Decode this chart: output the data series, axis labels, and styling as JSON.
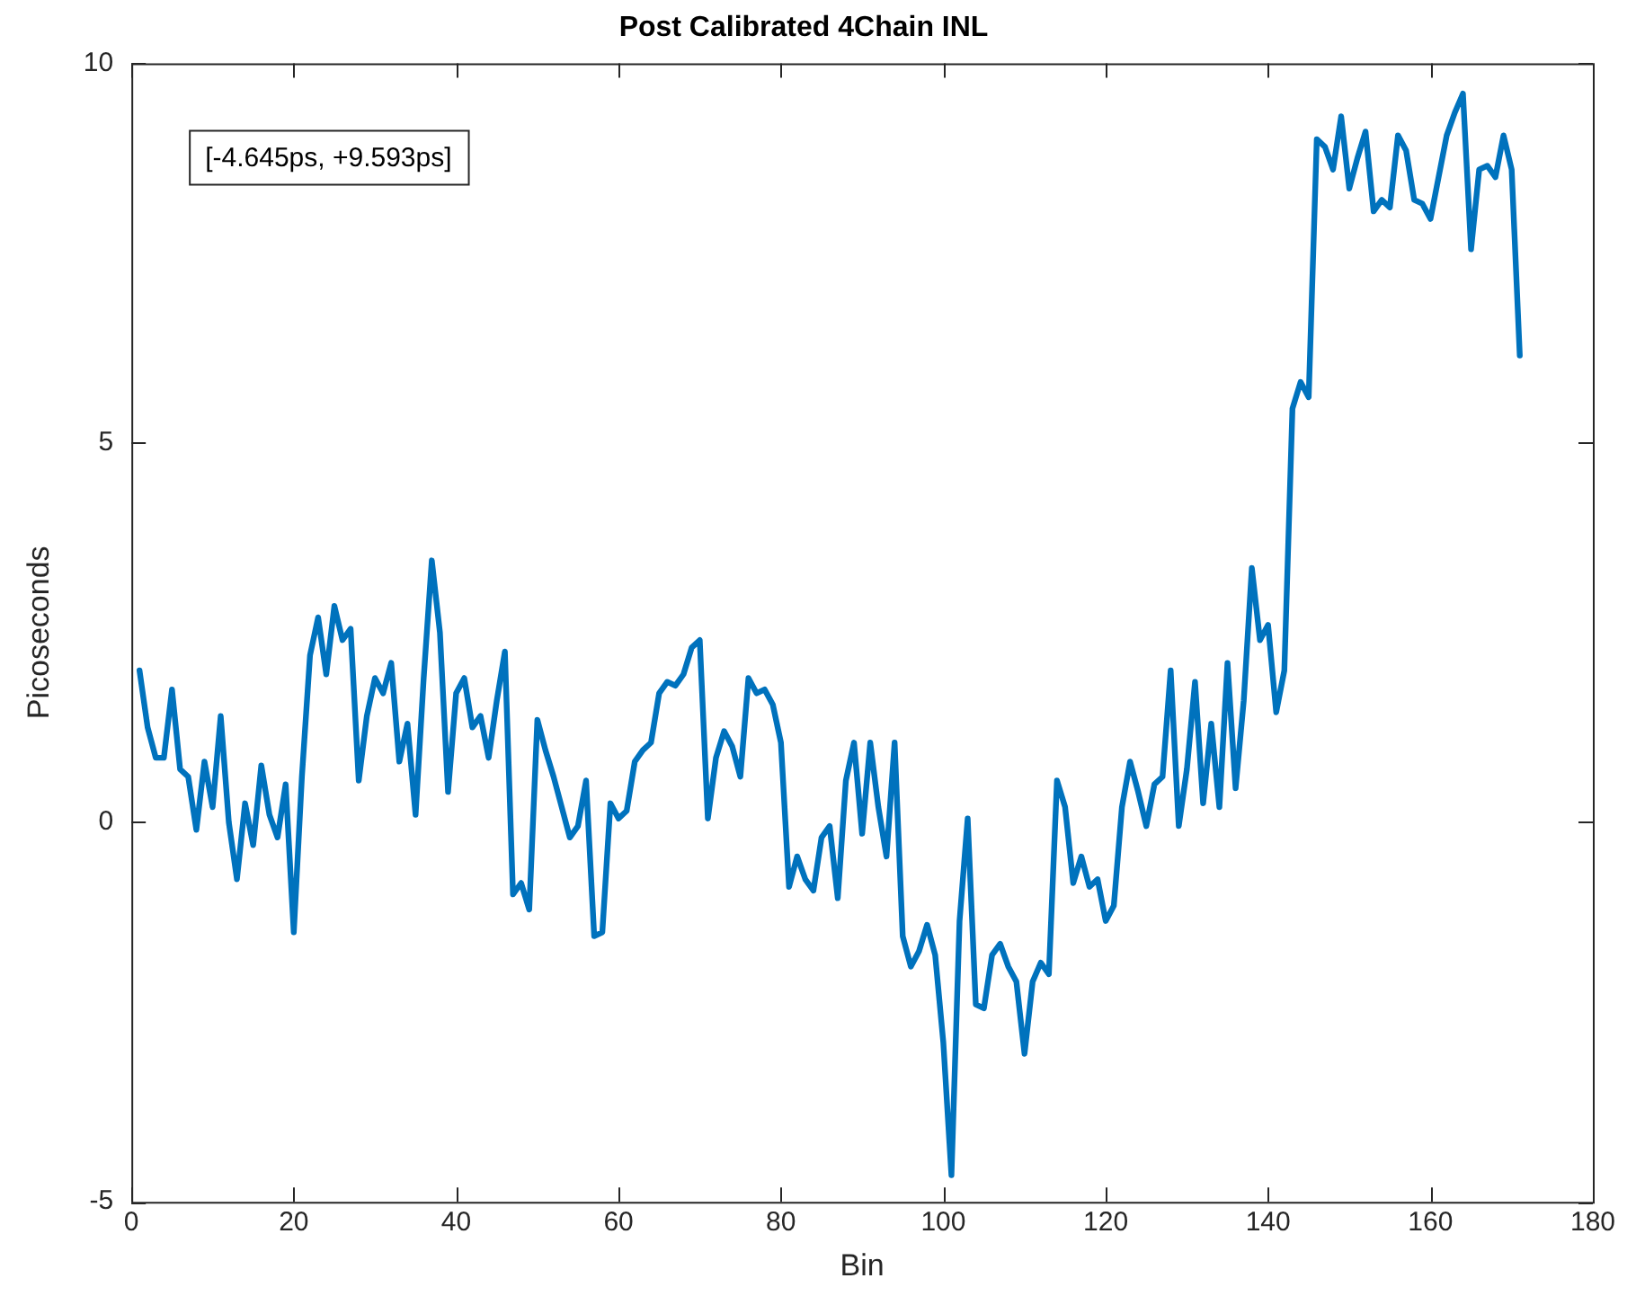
{
  "chart_data": {
    "type": "line",
    "title": "Post Calibrated 4Chain INL",
    "xlabel": "Bin",
    "ylabel": "Picoseconds",
    "annotations": [
      "[-4.645ps, +9.593ps]"
    ],
    "x": [
      1,
      2,
      3,
      4,
      5,
      6,
      7,
      8,
      9,
      10,
      11,
      12,
      13,
      14,
      15,
      16,
      17,
      18,
      19,
      20,
      21,
      22,
      23,
      24,
      25,
      26,
      27,
      28,
      29,
      30,
      31,
      32,
      33,
      34,
      35,
      36,
      37,
      38,
      39,
      40,
      41,
      42,
      43,
      44,
      45,
      46,
      47,
      48,
      49,
      50,
      51,
      52,
      53,
      54,
      55,
      56,
      57,
      58,
      59,
      60,
      61,
      62,
      63,
      64,
      65,
      66,
      67,
      68,
      69,
      70,
      71,
      72,
      73,
      74,
      75,
      76,
      77,
      78,
      79,
      80,
      81,
      82,
      83,
      84,
      85,
      86,
      87,
      88,
      89,
      90,
      91,
      92,
      93,
      94,
      95,
      96,
      97,
      98,
      99,
      100,
      101,
      102,
      103,
      104,
      105,
      106,
      107,
      108,
      109,
      110,
      111,
      112,
      113,
      114,
      115,
      116,
      117,
      118,
      119,
      120,
      121,
      122,
      123,
      124,
      125,
      126,
      127,
      128,
      129,
      130,
      131,
      132,
      133,
      134,
      135,
      136,
      137,
      138,
      139,
      140,
      141,
      142,
      143,
      144,
      145,
      146,
      147,
      148,
      149,
      150,
      151,
      152,
      153,
      154,
      155,
      156,
      157,
      158,
      159,
      160,
      161,
      162,
      163,
      164,
      165,
      166,
      167,
      168,
      169,
      170,
      171
    ],
    "series": [
      {
        "color": "#0072bd",
        "values": [
          2.0,
          1.25,
          0.85,
          0.85,
          1.75,
          0.7,
          0.6,
          -0.1,
          0.8,
          0.2,
          1.4,
          0.0,
          -0.75,
          0.25,
          -0.3,
          0.75,
          0.1,
          -0.2,
          0.5,
          -1.45,
          0.6,
          2.2,
          2.7,
          1.95,
          2.85,
          2.4,
          2.55,
          0.55,
          1.4,
          1.9,
          1.7,
          2.1,
          0.8,
          1.3,
          0.1,
          1.9,
          3.45,
          2.5,
          0.4,
          1.7,
          1.9,
          1.25,
          1.4,
          0.85,
          1.6,
          2.25,
          -0.95,
          -0.8,
          -1.15,
          1.35,
          0.95,
          0.6,
          0.2,
          -0.2,
          -0.05,
          0.55,
          -1.5,
          -1.45,
          0.25,
          0.05,
          0.15,
          0.8,
          0.95,
          1.05,
          1.7,
          1.85,
          1.8,
          1.95,
          2.3,
          2.4,
          0.05,
          0.85,
          1.2,
          1.0,
          0.6,
          1.9,
          1.7,
          1.75,
          1.55,
          1.05,
          -0.85,
          -0.45,
          -0.75,
          -0.9,
          -0.2,
          -0.05,
          -1.0,
          0.55,
          1.05,
          -0.15,
          1.05,
          0.2,
          -0.45,
          1.05,
          -1.5,
          -1.9,
          -1.7,
          -1.35,
          -1.75,
          -2.9,
          -4.65,
          -1.3,
          0.05,
          -2.4,
          -2.45,
          -1.75,
          -1.6,
          -1.9,
          -2.1,
          -3.05,
          -2.1,
          -1.85,
          -2.0,
          0.55,
          0.2,
          -0.8,
          -0.45,
          -0.85,
          -0.75,
          -1.3,
          -1.1,
          0.2,
          0.8,
          0.4,
          -0.05,
          0.5,
          0.6,
          2.0,
          -0.05,
          0.7,
          1.85,
          0.25,
          1.3,
          0.2,
          2.1,
          0.45,
          1.6,
          3.35,
          2.4,
          2.6,
          1.45,
          2.0,
          5.45,
          5.8,
          5.6,
          9.0,
          8.9,
          8.6,
          9.3,
          8.35,
          8.75,
          9.1,
          8.05,
          8.2,
          8.1,
          9.05,
          8.85,
          8.2,
          8.15,
          7.95,
          8.5,
          9.05,
          9.35,
          9.6,
          7.55,
          8.6,
          8.65,
          8.5,
          9.05,
          8.6,
          6.15
        ]
      }
    ],
    "xlim": [
      0,
      180
    ],
    "xticks": [
      0,
      20,
      40,
      60,
      80,
      100,
      120,
      140,
      160,
      180
    ],
    "ylim": [
      -5,
      10
    ],
    "yticks": [
      -5,
      0,
      5,
      10
    ],
    "grid": false,
    "legend": false,
    "marker": "none",
    "line_style": "solid"
  }
}
